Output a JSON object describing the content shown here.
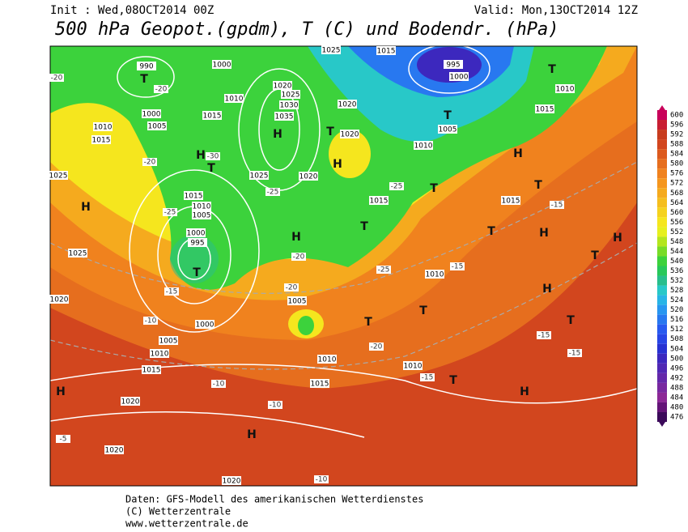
{
  "header": {
    "init": "Init : Wed,08OCT2014 00Z",
    "valid": "Valid: Mon,13OCT2014 12Z",
    "title": "500 hPa Geopot.(gpdm), T (C) und Bodendr. (hPa)"
  },
  "colorbar": {
    "ticks": [
      600,
      596,
      592,
      588,
      584,
      580,
      576,
      572,
      568,
      564,
      560,
      556,
      552,
      548,
      544,
      540,
      536,
      532,
      528,
      524,
      520,
      516,
      512,
      508,
      504,
      500,
      496,
      492,
      488,
      484,
      480,
      476
    ],
    "colors": [
      "#c8005a",
      "#c81e32",
      "#c83c1e",
      "#d2461e",
      "#dc5a1e",
      "#e66e1e",
      "#f0821e",
      "#f5961e",
      "#f5aa1e",
      "#f5be1e",
      "#f5d21e",
      "#f5e61e",
      "#e6f01e",
      "#b4e61e",
      "#78dc28",
      "#3cd23c",
      "#28c85a",
      "#28be8c",
      "#28c8c8",
      "#28b4e6",
      "#2896f0",
      "#2878f0",
      "#285af0",
      "#2846e6",
      "#2832d2",
      "#3c28be",
      "#5028b4",
      "#6428aa",
      "#7828a0",
      "#8c2896",
      "#641478",
      "#3c0a5a"
    ]
  },
  "map": {
    "pressure": [
      "990",
      "1000",
      "1020",
      "1025",
      "1030",
      "1035",
      "1010",
      "1015",
      "1000",
      "1005",
      "1010",
      "1015",
      "1025",
      "1025",
      "1020",
      "1015",
      "1010",
      "1005",
      "1000",
      "995",
      "1000",
      "1005",
      "1010",
      "1015",
      "1020",
      "1020",
      "1020",
      "1005",
      "1010",
      "1015",
      "1010",
      "1015",
      "1010",
      "1015",
      "995",
      "1000",
      "1005",
      "1010",
      "1020",
      "1020",
      "1015",
      "1010",
      "1025",
      "1020",
      "1025",
      "1015"
    ],
    "centers": [
      "T",
      "H",
      "H",
      "T",
      "H",
      "H",
      "T",
      "H",
      "H",
      "T",
      "H",
      "T",
      "H",
      "T",
      "H",
      "T",
      "T",
      "H",
      "T",
      "H",
      "T",
      "T",
      "H",
      "T",
      "T",
      "T",
      "T"
    ],
    "temps": [
      "-20",
      "-20",
      "-30",
      "-20",
      "-25",
      "-25",
      "-20",
      "-20",
      "-10",
      "-15",
      "-20",
      "-15",
      "-10",
      "-10",
      "-15",
      "-15",
      "-15",
      "-15",
      "-25",
      "-25",
      "-5",
      "-10"
    ]
  },
  "footer": {
    "line1": "Daten: GFS-Modell des amerikanischen Wetterdienstes",
    "line2": "(C) Wetterzentrale",
    "line3": "www.wetterzentrale.de"
  }
}
